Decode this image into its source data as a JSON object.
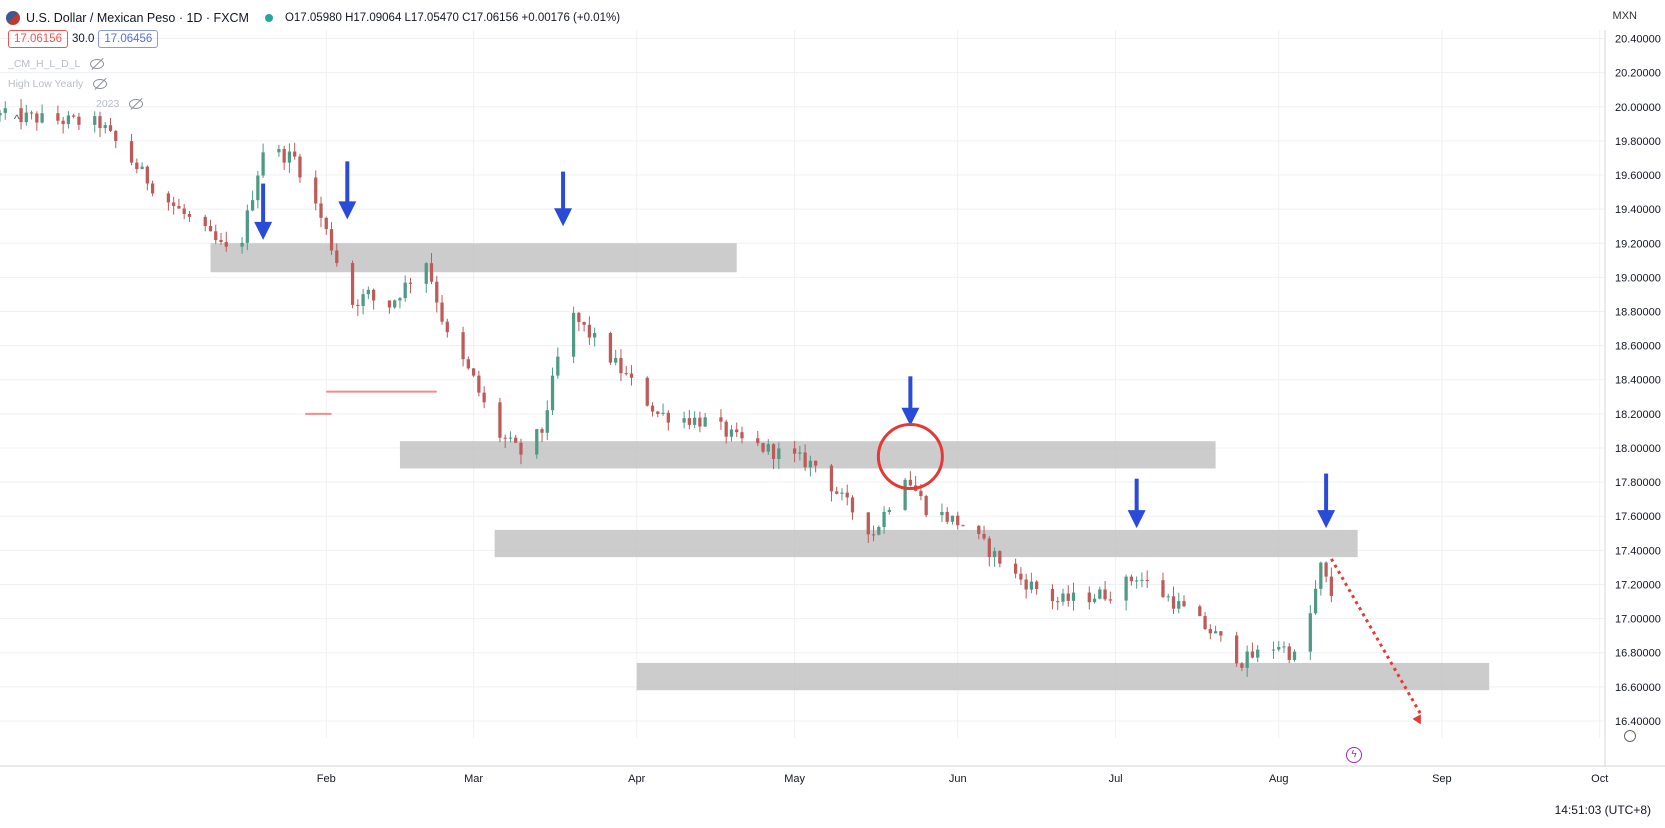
{
  "header": {
    "symbol_title": "U.S. Dollar / Mexican Peso · 1D · FXCM",
    "ohlc_text": "O17.05980 H17.09064 L17.05470 C17.06156 +0.00176 (+0.01%)",
    "bid": "17.06156",
    "spread": "30.0",
    "ask": "17.06456",
    "indicators": [
      "_CM_H_L_D_L",
      "High Low Yearly",
      "2023"
    ],
    "currency_code": "MXN",
    "clock": "14:51:03 (UTC+8)"
  },
  "colors": {
    "bull": "#4f9a85",
    "bear": "#bd5a5a",
    "zone": "#bfbfbf",
    "arrow": "#2a4bd8",
    "circle": "#e53935",
    "projection": "#e53935",
    "grid": "#eef0f3"
  },
  "chart_data": {
    "type": "candlestick",
    "instrument": "USDMXN",
    "timeframe": "1D",
    "y_axis": {
      "side": "right",
      "ylim": [
        16.3,
        20.45
      ],
      "ticks": [
        "20.40000",
        "20.20000",
        "20.00000",
        "19.80000",
        "19.60000",
        "19.40000",
        "19.20000",
        "19.00000",
        "18.80000",
        "18.60000",
        "18.40000",
        "18.20000",
        "18.00000",
        "17.80000",
        "17.60000",
        "17.40000",
        "17.20000",
        "17.00000",
        "16.80000",
        "16.60000",
        "16.40000"
      ]
    },
    "x_axis": {
      "start": "2022-12-01",
      "end": "2023-10-02",
      "ticks": [
        {
          "label": "Feb",
          "date": "2023-02-01"
        },
        {
          "label": "Mar",
          "date": "2023-03-01"
        },
        {
          "label": "Apr",
          "date": "2023-04-01"
        },
        {
          "label": "May",
          "date": "2023-05-01"
        },
        {
          "label": "Jun",
          "date": "2023-06-01"
        },
        {
          "label": "Jul",
          "date": "2023-07-01"
        },
        {
          "label": "Aug",
          "date": "2023-08-01"
        },
        {
          "label": "Sep",
          "date": "2023-09-01"
        },
        {
          "label": "Oct",
          "date": "2023-10-01"
        }
      ]
    },
    "grid": true,
    "path": [
      {
        "date": "2022-12-01",
        "price": 19.95
      },
      {
        "date": "2022-12-20",
        "price": 19.9
      },
      {
        "date": "2022-12-31",
        "price": 19.5
      },
      {
        "date": "2023-01-15",
        "price": 19.1
      },
      {
        "date": "2023-01-20",
        "price": 19.75
      },
      {
        "date": "2023-01-26",
        "price": 19.7
      },
      {
        "date": "2023-01-31",
        "price": 19.35
      },
      {
        "date": "2023-02-06",
        "price": 18.85
      },
      {
        "date": "2023-02-09",
        "price": 18.9
      },
      {
        "date": "2023-02-12",
        "price": 18.8
      },
      {
        "date": "2023-02-20",
        "price": 19.1
      },
      {
        "date": "2023-02-24",
        "price": 18.65
      },
      {
        "date": "2023-03-01",
        "price": 18.4
      },
      {
        "date": "2023-03-05",
        "price": 18.1
      },
      {
        "date": "2023-03-10",
        "price": 17.97
      },
      {
        "date": "2023-03-14",
        "price": 18.1
      },
      {
        "date": "2023-03-19",
        "price": 18.8
      },
      {
        "date": "2023-03-25",
        "price": 18.6
      },
      {
        "date": "2023-04-05",
        "price": 18.2
      },
      {
        "date": "2023-04-15",
        "price": 18.15
      },
      {
        "date": "2023-04-20",
        "price": 18.05
      },
      {
        "date": "2023-05-05",
        "price": 17.9
      },
      {
        "date": "2023-05-10",
        "price": 17.7
      },
      {
        "date": "2023-05-16",
        "price": 17.5
      },
      {
        "date": "2023-05-22",
        "price": 17.85
      },
      {
        "date": "2023-05-26",
        "price": 17.65
      },
      {
        "date": "2023-06-02",
        "price": 17.55
      },
      {
        "date": "2023-06-12",
        "price": 17.25
      },
      {
        "date": "2023-06-20",
        "price": 17.1
      },
      {
        "date": "2023-06-30",
        "price": 17.15
      },
      {
        "date": "2023-07-05",
        "price": 17.25
      },
      {
        "date": "2023-07-12",
        "price": 17.1
      },
      {
        "date": "2023-07-20",
        "price": 16.9
      },
      {
        "date": "2023-07-25",
        "price": 16.75
      },
      {
        "date": "2023-08-01",
        "price": 16.85
      },
      {
        "date": "2023-08-05",
        "price": 16.75
      },
      {
        "date": "2023-08-09",
        "price": 17.3
      },
      {
        "date": "2023-08-12",
        "price": 17.06
      }
    ],
    "zones": [
      {
        "start": "2023-01-10",
        "end": "2023-04-20",
        "low": 19.03,
        "high": 19.2
      },
      {
        "start": "2023-02-15",
        "end": "2023-07-20",
        "low": 17.88,
        "high": 18.04
      },
      {
        "start": "2023-03-05",
        "end": "2023-08-16",
        "low": 17.36,
        "high": 17.52
      },
      {
        "start": "2023-04-01",
        "end": "2023-09-10",
        "low": 16.58,
        "high": 16.74
      }
    ],
    "arrows": [
      {
        "date": "2023-01-20",
        "tip": 19.22,
        "tail": 19.55
      },
      {
        "date": "2023-02-05",
        "tip": 19.34,
        "tail": 19.68
      },
      {
        "date": "2023-03-18",
        "tip": 19.3,
        "tail": 19.62
      },
      {
        "date": "2023-05-23",
        "tip": 18.13,
        "tail": 18.42
      },
      {
        "date": "2023-07-05",
        "tip": 17.53,
        "tail": 17.82
      },
      {
        "date": "2023-08-10",
        "tip": 17.53,
        "tail": 17.85
      }
    ],
    "circle": {
      "date": "2023-05-23",
      "price": 17.95
    },
    "projection": {
      "from_date": "2023-08-11",
      "from_price": 17.35,
      "to_date": "2023-08-28",
      "to_price": 16.38
    },
    "levels": [
      {
        "start": "2023-02-01",
        "end": "2023-02-22",
        "price": 18.33
      },
      {
        "start": "2023-01-28",
        "end": "2023-02-02",
        "price": 18.2
      }
    ]
  }
}
